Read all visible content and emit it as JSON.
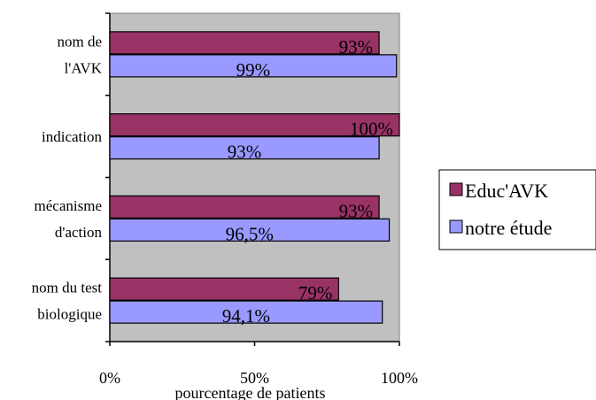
{
  "chart_data": {
    "type": "bar",
    "orientation": "horizontal",
    "categories": [
      [
        "nom de",
        "l'AVK"
      ],
      [
        "indication"
      ],
      [
        "mécanisme",
        "d'action"
      ],
      [
        "nom du test",
        "biologique"
      ]
    ],
    "series": [
      {
        "name": "Educ'AVK",
        "color": "#993366",
        "values": [
          93,
          100,
          93,
          79
        ],
        "labels": [
          "93%",
          "100%",
          "93%",
          "79%"
        ]
      },
      {
        "name": "notre étude",
        "color": "#9999ff",
        "values": [
          99,
          93,
          96.5,
          94.1
        ],
        "labels": [
          "99%",
          "93%",
          "96,5%",
          "94,1%"
        ]
      }
    ],
    "xlim": [
      0,
      100
    ],
    "xticks": [
      0,
      50,
      100
    ],
    "xtick_labels": [
      "0%",
      "50%",
      "100%"
    ],
    "xlabel": "pourcentage de patients",
    "ylabel": "",
    "title": "",
    "plot_background": "#c0c0c0",
    "grid": false,
    "legend_position": "right"
  }
}
